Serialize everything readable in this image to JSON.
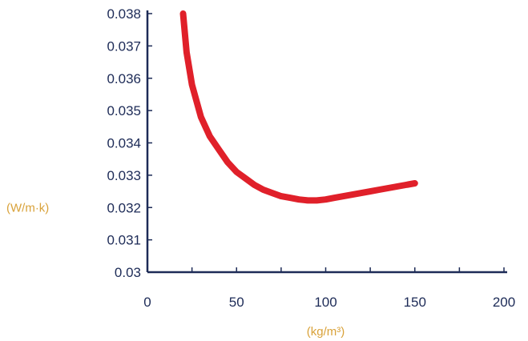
{
  "chart_data": {
    "type": "line",
    "title": "",
    "xlabel": "(kg/m³)",
    "ylabel": "(W/m·k)",
    "xlim": [
      0,
      200
    ],
    "ylim": [
      0.03,
      0.038
    ],
    "x_ticks": [
      "0",
      "50",
      "100",
      "150",
      "200"
    ],
    "y_ticks": [
      "0.03",
      "0.031",
      "0.032",
      "0.033",
      "0.034",
      "0.035",
      "0.036",
      "0.037",
      "0.038"
    ],
    "grid": false,
    "series": [
      {
        "color": "#e0202a",
        "x": [
          20,
          22,
          25,
          30,
          35,
          40,
          45,
          50,
          55,
          60,
          65,
          70,
          75,
          80,
          85,
          90,
          95,
          100,
          105,
          110,
          115,
          120,
          125,
          130,
          135,
          140,
          145,
          150
        ],
        "y": [
          0.038,
          0.0368,
          0.0358,
          0.0348,
          0.0342,
          0.0338,
          0.0334,
          0.0331,
          0.0329,
          0.0327,
          0.03255,
          0.03245,
          0.03235,
          0.0323,
          0.03225,
          0.03222,
          0.03222,
          0.03225,
          0.0323,
          0.03235,
          0.0324,
          0.03245,
          0.0325,
          0.03255,
          0.0326,
          0.03265,
          0.0327,
          0.03275
        ]
      }
    ]
  }
}
